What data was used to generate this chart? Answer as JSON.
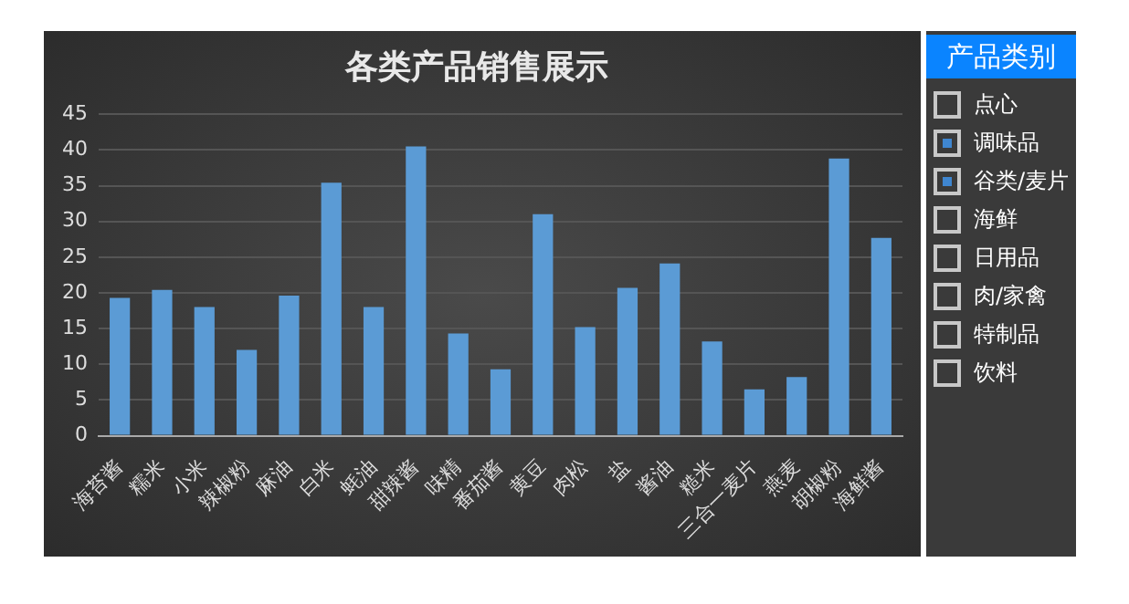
{
  "chart_data": {
    "type": "bar",
    "title": "各类产品销售展示",
    "categories": [
      "海苔酱",
      "糯米",
      "小米",
      "辣椒粉",
      "麻油",
      "白米",
      "蚝油",
      "甜辣酱",
      "味精",
      "番茄酱",
      "黄豆",
      "肉松",
      "盐",
      "酱油",
      "糙米",
      "三合一麦片",
      "燕麦",
      "胡椒粉",
      "海鲜酱"
    ],
    "values": [
      19.3,
      20.4,
      18.0,
      12.0,
      19.6,
      35.4,
      18.0,
      40.5,
      14.3,
      9.3,
      31.0,
      15.2,
      20.7,
      24.1,
      13.2,
      6.5,
      8.2,
      38.8,
      27.7
    ],
    "color": "#5b9bd5",
    "ylim": [
      0,
      45
    ],
    "yticks": [
      0,
      5,
      10,
      15,
      20,
      25,
      30,
      35,
      40,
      45
    ],
    "grid": "y",
    "legend": false,
    "annotations": [
      "产品类别",
      "点心",
      "调味品",
      "谷类/麦片",
      "海鲜",
      "日用品",
      "肉/家禽",
      "特制品",
      "饮料"
    ]
  }
}
